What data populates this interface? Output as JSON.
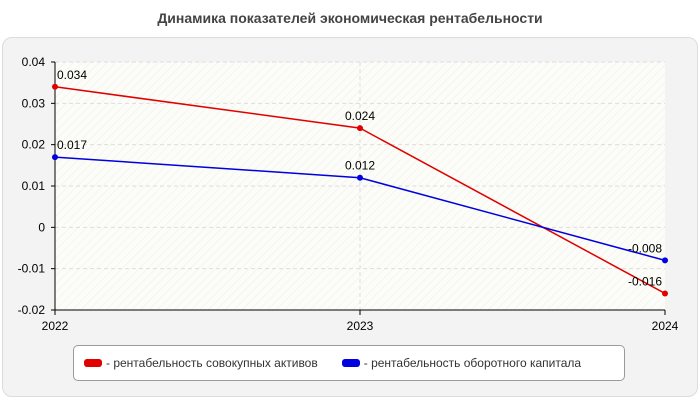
{
  "chart_data": {
    "type": "line",
    "title": "Динамика показателей экономическая рентабельности",
    "x": [
      "2022",
      "2023",
      "2024"
    ],
    "ylim": [
      -0.02,
      0.04
    ],
    "yticks": [
      "0.04",
      "0.03",
      "0.02",
      "0.01",
      "0",
      "-0.01",
      "-0.02"
    ],
    "grid": true,
    "legend_position": "bottom",
    "series": [
      {
        "name": "- рентабельность совокупных активов",
        "color": "#e00000",
        "values": [
          0.034,
          0.024,
          -0.016
        ],
        "labels": [
          "0.034",
          "0.024",
          "-0.016"
        ]
      },
      {
        "name": "- рентабельность оборотного капитала",
        "color": "#0000e0",
        "values": [
          0.017,
          0.012,
          -0.008
        ],
        "labels": [
          "0.017",
          "0.012",
          "-0.008"
        ]
      }
    ]
  }
}
